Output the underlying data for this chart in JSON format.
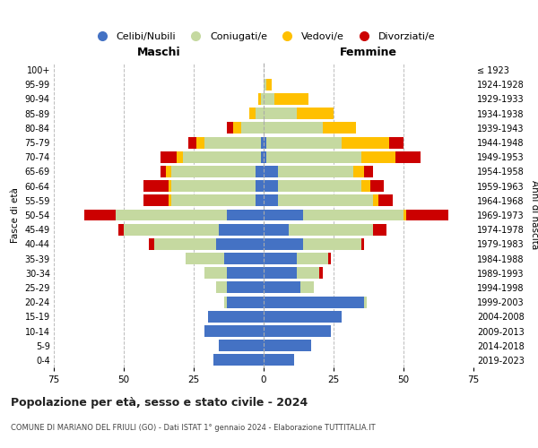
{
  "age_groups": [
    "0-4",
    "5-9",
    "10-14",
    "15-19",
    "20-24",
    "25-29",
    "30-34",
    "35-39",
    "40-44",
    "45-49",
    "50-54",
    "55-59",
    "60-64",
    "65-69",
    "70-74",
    "75-79",
    "80-84",
    "85-89",
    "90-94",
    "95-99",
    "100+"
  ],
  "birth_years": [
    "2019-2023",
    "2014-2018",
    "2009-2013",
    "2004-2008",
    "1999-2003",
    "1994-1998",
    "1989-1993",
    "1984-1988",
    "1979-1983",
    "1974-1978",
    "1969-1973",
    "1964-1968",
    "1959-1963",
    "1954-1958",
    "1949-1953",
    "1944-1948",
    "1939-1943",
    "1934-1938",
    "1929-1933",
    "1924-1928",
    "≤ 1923"
  ],
  "colors": {
    "celibi": "#4472c4",
    "coniugati": "#c5d9a0",
    "vedovi": "#ffc000",
    "divorziati": "#cc0000"
  },
  "maschi": {
    "celibi": [
      18,
      16,
      21,
      20,
      13,
      13,
      13,
      14,
      17,
      16,
      13,
      3,
      3,
      3,
      1,
      1,
      0,
      0,
      0,
      0,
      0
    ],
    "coniugati": [
      0,
      0,
      0,
      0,
      1,
      4,
      8,
      14,
      22,
      34,
      40,
      30,
      30,
      30,
      28,
      20,
      8,
      3,
      1,
      0,
      0
    ],
    "vedovi": [
      0,
      0,
      0,
      0,
      0,
      0,
      0,
      0,
      0,
      0,
      0,
      1,
      1,
      2,
      2,
      3,
      3,
      2,
      1,
      0,
      0
    ],
    "divorziati": [
      0,
      0,
      0,
      0,
      0,
      0,
      0,
      0,
      2,
      2,
      11,
      9,
      9,
      2,
      6,
      3,
      2,
      0,
      0,
      0,
      0
    ]
  },
  "femmine": {
    "celibi": [
      11,
      17,
      24,
      28,
      36,
      13,
      12,
      12,
      14,
      9,
      14,
      5,
      5,
      5,
      1,
      1,
      0,
      0,
      0,
      0,
      0
    ],
    "coniugati": [
      0,
      0,
      0,
      0,
      1,
      5,
      8,
      11,
      21,
      30,
      36,
      34,
      30,
      27,
      34,
      27,
      21,
      12,
      4,
      1,
      0
    ],
    "vedovi": [
      0,
      0,
      0,
      0,
      0,
      0,
      0,
      0,
      0,
      0,
      1,
      2,
      3,
      4,
      12,
      17,
      12,
      13,
      12,
      2,
      0
    ],
    "divorziati": [
      0,
      0,
      0,
      0,
      0,
      0,
      1,
      1,
      1,
      5,
      15,
      5,
      5,
      3,
      9,
      5,
      0,
      0,
      0,
      0,
      0
    ]
  },
  "title": "Popolazione per età, sesso e stato civile - 2024",
  "subtitle": "COMUNE DI MARIANO DEL FRIULI (GO) - Dati ISTAT 1° gennaio 2024 - Elaborazione TUTTITALIA.IT",
  "xlabel_left": "Maschi",
  "xlabel_right": "Femmine",
  "ylabel_left": "Fasce di età",
  "ylabel_right": "Anni di nascita",
  "xlim": 75,
  "background_color": "#ffffff",
  "grid_color": "#cccccc",
  "legend_labels": [
    "Celibi/Nubili",
    "Coniugati/e",
    "Vedovi/e",
    "Divorziati/e"
  ]
}
